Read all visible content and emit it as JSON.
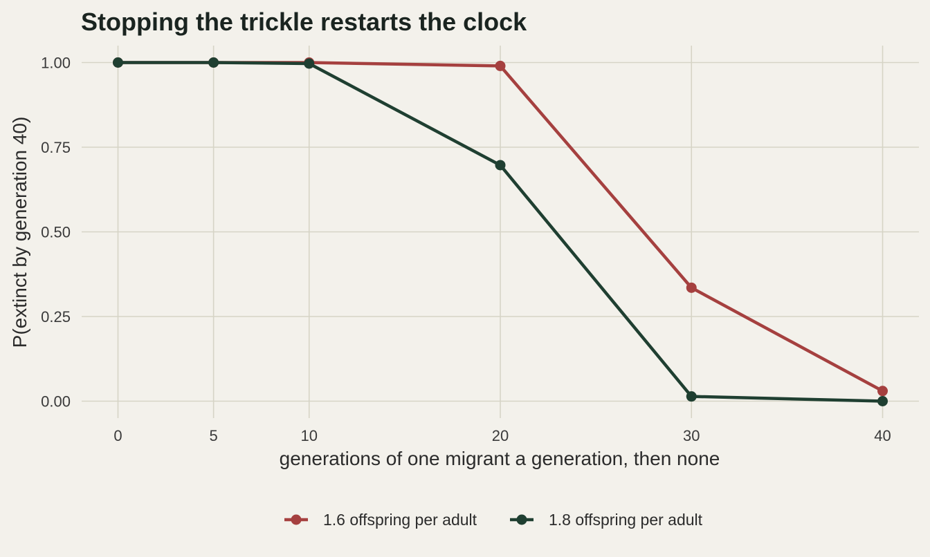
{
  "chart_data": {
    "type": "line",
    "title": "Stopping the trickle restarts the clock",
    "xlabel": "generations of one migrant a generation, then none",
    "ylabel": "P(extinct by generation 40)",
    "x": [
      0,
      5,
      10,
      20,
      30,
      40
    ],
    "x_ticks": [
      "0",
      "5",
      "10",
      "20",
      "30",
      "40"
    ],
    "y_ticks": [
      "0.00",
      "0.25",
      "0.50",
      "0.75",
      "1.00"
    ],
    "xlim": [
      -1.9,
      41.9
    ],
    "ylim": [
      -0.05,
      1.05
    ],
    "grid": true,
    "legend_position": "bottom",
    "series": [
      {
        "name": "1.6 offspring per adult",
        "color": "#a5403f",
        "values": [
          1.0,
          1.0,
          1.0,
          0.99,
          0.335,
          0.03
        ]
      },
      {
        "name": "1.8 offspring per adult",
        "color": "#1f3f31",
        "values": [
          1.0,
          1.0,
          0.997,
          0.697,
          0.014,
          0.0
        ]
      }
    ]
  }
}
